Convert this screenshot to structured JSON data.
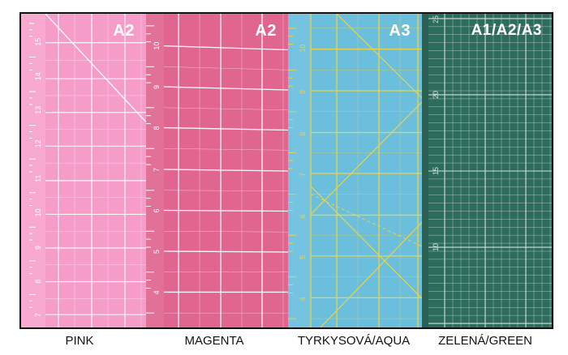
{
  "mats": [
    {
      "id": "pink",
      "size_label": "A2",
      "caption": "PINK",
      "color": "#f59cc9",
      "line_color": "#ffffff"
    },
    {
      "id": "magenta",
      "size_label": "A2",
      "caption": "MAGENTA",
      "color": "#e0668f",
      "line_color": "#ffffff"
    },
    {
      "id": "aqua",
      "size_label": "A3",
      "caption": "TYRKYSOVÁ/AQUA",
      "color": "#6cbedd",
      "line_color": "#e8d44a"
    },
    {
      "id": "green",
      "size_label": "A1/A2/A3",
      "caption": "ZELENÁ/GREEN",
      "color": "#2d6c5c",
      "line_color": "#cfe0d9"
    }
  ],
  "rulers": {
    "pink": [
      "15",
      "14",
      "13",
      "12",
      "11",
      "10",
      "9",
      "8",
      "7"
    ],
    "magenta": [
      "10",
      "9",
      "8",
      "7",
      "6",
      "5",
      "4"
    ],
    "aqua": [
      "10",
      "9",
      "8",
      "7",
      "6",
      "5",
      "4"
    ],
    "green": [
      "25",
      "20",
      "15",
      "10"
    ]
  }
}
